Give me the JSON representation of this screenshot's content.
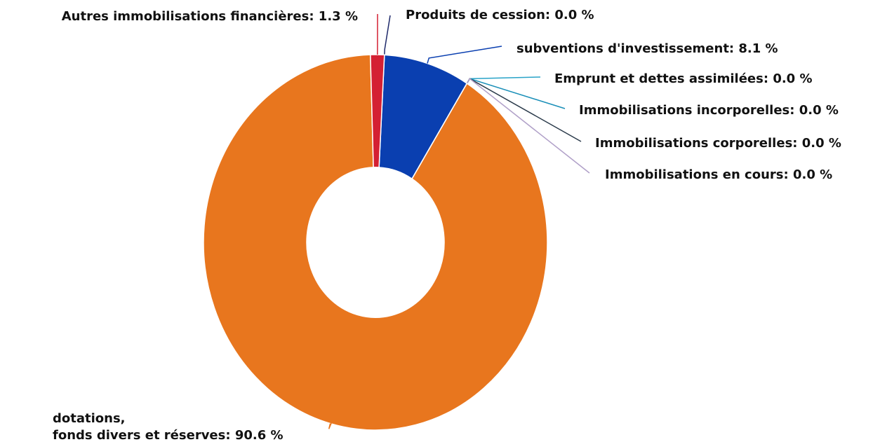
{
  "chart_data": {
    "type": "donut",
    "labels": [
      "Produits de cession: 0.0 %",
      "subventions d'investissement: 8.1 %",
      "Emprunt et dettes assimilées: 0.0 %",
      "Immobilisations incorporelles: 0.0 %",
      "Immobilisations corporelles: 0.0 %",
      "Immobilisations en cours: 0.0 %",
      "dotations,\nfonds divers et réserves: 90.6 %",
      "Autres immobilisations financières: 1.3 %"
    ],
    "values": [
      0.0,
      8.1,
      0.0,
      0.0,
      0.0,
      0.0,
      90.6,
      1.3
    ],
    "colors": [
      "#1f2a6b",
      "#0a3fb0",
      "#29a3c8",
      "#1a8fb8",
      "#2a3a4a",
      "#b0a0c8",
      "#e8761e",
      "#d42033"
    ]
  }
}
